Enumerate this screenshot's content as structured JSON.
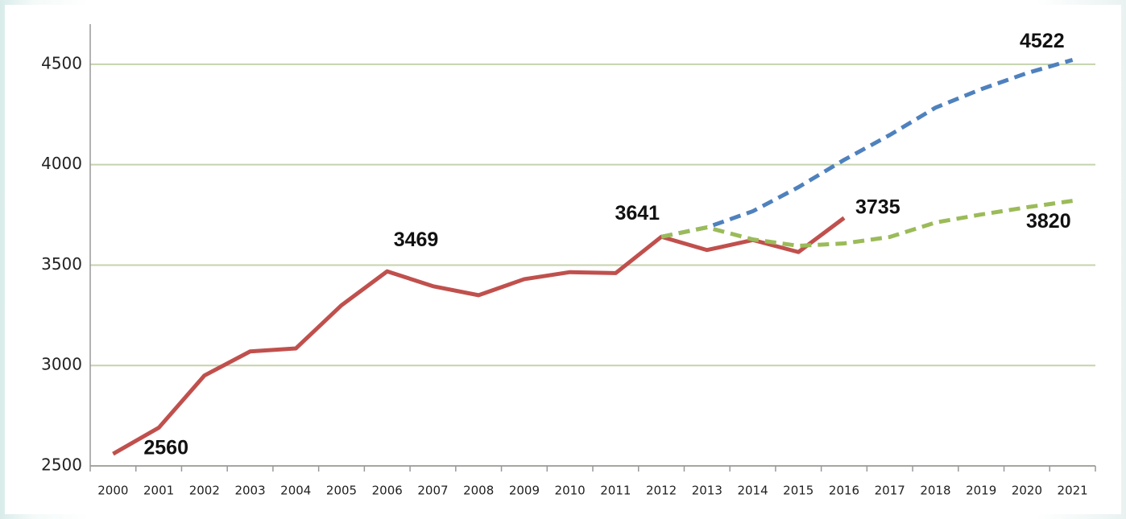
{
  "chart_data": {
    "type": "line",
    "categories": [
      "2000",
      "2001",
      "2002",
      "2003",
      "2004",
      "2005",
      "2006",
      "2007",
      "2008",
      "2009",
      "2010",
      "2011",
      "2012",
      "2013",
      "2014",
      "2015",
      "2016",
      "2017",
      "2018",
      "2019",
      "2020",
      "2021"
    ],
    "series": [
      {
        "color": "#c0504d",
        "dashed": false,
        "values": [
          2560,
          2690,
          2950,
          3070,
          3085,
          3300,
          3469,
          3395,
          3350,
          3430,
          3465,
          3460,
          3641,
          3575,
          3625,
          3565,
          3735,
          null,
          null,
          null,
          null,
          null
        ]
      },
      {
        "color": "#4f81bd",
        "dashed": true,
        "values": [
          null,
          null,
          null,
          null,
          null,
          null,
          null,
          null,
          null,
          null,
          null,
          null,
          3641,
          3688,
          3768,
          3888,
          4024,
          4148,
          4284,
          4376,
          4456,
          4522
        ]
      },
      {
        "color": "#9bbb59",
        "dashed": true,
        "values": [
          null,
          null,
          null,
          null,
          null,
          null,
          null,
          null,
          null,
          null,
          null,
          null,
          3641,
          3688,
          3628,
          3596,
          3608,
          3640,
          3712,
          3752,
          3788,
          3820
        ]
      }
    ],
    "ylim": [
      2500,
      4700
    ],
    "yticks": [
      2500,
      3000,
      3500,
      4000,
      4500
    ],
    "grid": true
  }
}
